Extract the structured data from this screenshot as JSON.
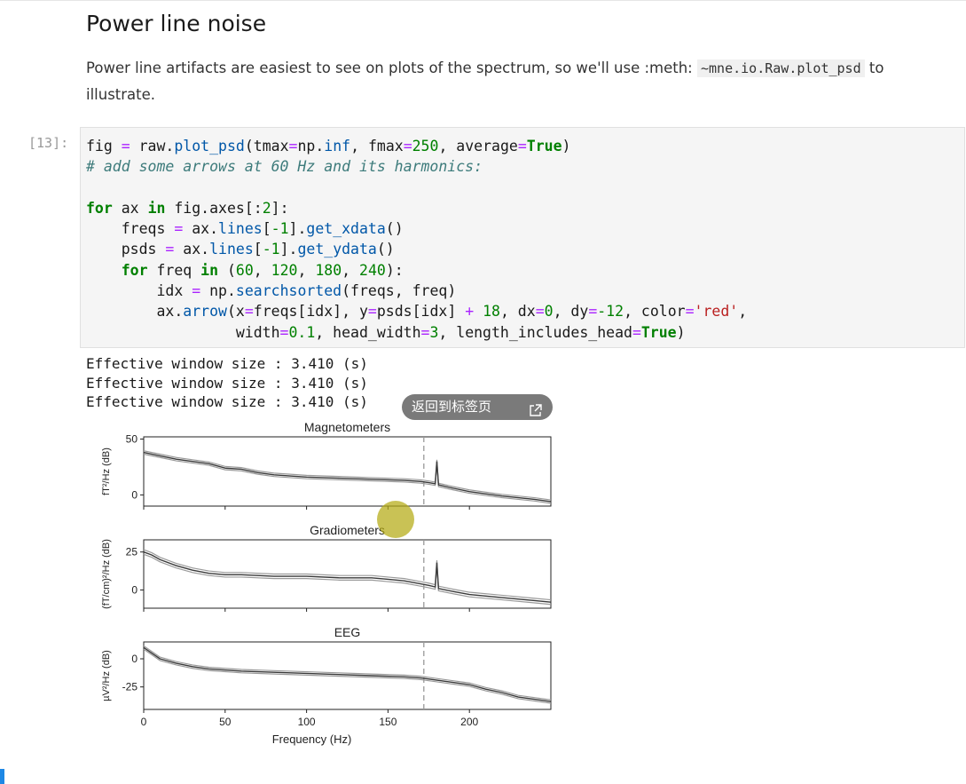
{
  "heading": "Power line noise",
  "paragraph": {
    "before": "Power line artifacts are easiest to see on plots of the spectrum, so we'll use :meth:",
    "code": "~mne.io.Raw.plot_psd",
    "after": " to illustrate."
  },
  "cell": {
    "prompt": "[13]:",
    "code_lines": [
      "fig = raw.plot_psd(tmax=np.inf, fmax=250, average=True)",
      "# add some arrows at 60 Hz and its harmonics:",
      "",
      "for ax in fig.axes[:2]:",
      "    freqs = ax.lines[-1].get_xdata()",
      "    psds = ax.lines[-1].get_ydata()",
      "    for freq in (60, 120, 180, 240):",
      "        idx = np.searchsorted(freqs, freq)",
      "        ax.arrow(x=freqs[idx], y=psds[idx] + 18, dx=0, dy=-12, color='red',",
      "                 width=0.1, head_width=3, length_includes_head=True)"
    ],
    "output_lines": [
      "Effective window size : 3.410 (s)",
      "Effective window size : 3.410 (s)",
      "Effective window size : 3.410 (s)"
    ]
  },
  "overlay": {
    "back_to_tab_label": "返回到标签页",
    "external_icon": "external-link-icon"
  },
  "chart_data": [
    {
      "type": "line",
      "title": "Magnetometers",
      "ylabel": "fT²/Hz (dB)",
      "xlim": [
        0,
        250
      ],
      "ylim": [
        -10,
        52
      ],
      "yticks": [
        0,
        50
      ],
      "vline_x": 172,
      "series": [
        {
          "x": [
            0,
            10,
            20,
            30,
            40,
            50,
            60,
            70,
            80,
            100,
            120,
            140,
            160,
            170,
            175,
            179,
            180,
            181,
            190,
            200,
            220,
            240,
            250
          ],
          "y": [
            38,
            35,
            32,
            30,
            28,
            24,
            23,
            20,
            18,
            16,
            15,
            14,
            13,
            12,
            11,
            10,
            30,
            9,
            6,
            3,
            -1,
            -4,
            -6
          ]
        }
      ],
      "color": "#3a3a3a"
    },
    {
      "type": "line",
      "title": "Gradiometers",
      "ylabel": "(fT/cm)²/Hz (dB)",
      "xlim": [
        0,
        250
      ],
      "ylim": [
        -12,
        33
      ],
      "yticks": [
        0,
        25
      ],
      "vline_x": 172,
      "series": [
        {
          "x": [
            0,
            5,
            10,
            20,
            30,
            40,
            50,
            60,
            80,
            100,
            120,
            140,
            150,
            160,
            170,
            175,
            179,
            180,
            181,
            190,
            200,
            220,
            240,
            250
          ],
          "y": [
            25,
            23,
            20,
            16,
            13,
            11,
            10,
            10,
            9,
            9,
            8,
            8,
            7,
            6,
            4,
            3,
            2,
            18,
            1,
            -1,
            -3,
            -5,
            -7,
            -8
          ]
        }
      ],
      "color": "#3a3a3a"
    },
    {
      "type": "line",
      "title": "EEG",
      "ylabel": "µV²/Hz (dB)",
      "xlabel": "Frequency (Hz)",
      "xlim": [
        0,
        250
      ],
      "ylim": [
        -45,
        15
      ],
      "yticks": [
        0,
        -25
      ],
      "xticks": [
        0,
        50,
        100,
        150,
        200
      ],
      "vline_x": 172,
      "series": [
        {
          "x": [
            0,
            5,
            10,
            20,
            30,
            40,
            50,
            60,
            80,
            100,
            120,
            140,
            160,
            170,
            180,
            190,
            200,
            210,
            220,
            230,
            240,
            250
          ],
          "y": [
            10,
            5,
            0,
            -4,
            -7,
            -9,
            -10,
            -11,
            -12,
            -13,
            -14,
            -15,
            -16,
            -17,
            -19,
            -21,
            -23,
            -27,
            -30,
            -34,
            -36,
            -38
          ]
        }
      ],
      "color": "#3a3a3a"
    }
  ]
}
